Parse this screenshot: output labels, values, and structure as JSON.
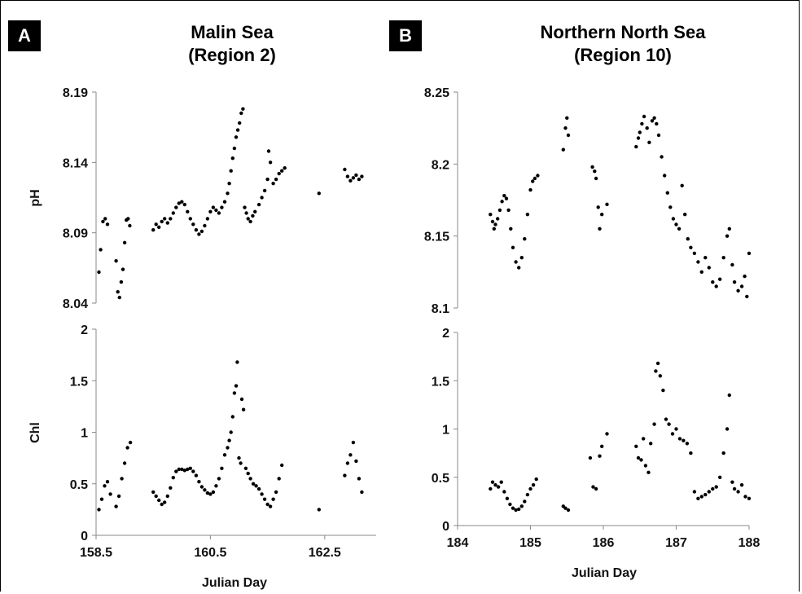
{
  "panels": {
    "A": {
      "label": "A",
      "title_line1": "Malin Sea",
      "title_line2": "(Region 2)"
    },
    "B": {
      "label": "B",
      "title_line1": "Northern North Sea",
      "title_line2": "(Region 10)"
    }
  },
  "chart_data": [
    {
      "type": "scatter",
      "panel": "A",
      "subplot": "top",
      "title": "Malin Sea (Region 2)",
      "xlabel": "",
      "ylabel": "pH",
      "xlim": [
        158.5,
        163.4
      ],
      "ylim": [
        8.04,
        8.19
      ],
      "yticks": [
        "8.04",
        "8.09",
        "8.14",
        "8.19"
      ],
      "color": "#000000",
      "points": [
        [
          158.55,
          8.062
        ],
        [
          158.58,
          8.078
        ],
        [
          158.62,
          8.098
        ],
        [
          158.66,
          8.1
        ],
        [
          158.7,
          8.096
        ],
        [
          158.85,
          8.07
        ],
        [
          158.88,
          8.048
        ],
        [
          158.91,
          8.044
        ],
        [
          158.94,
          8.055
        ],
        [
          158.97,
          8.064
        ],
        [
          159.0,
          8.083
        ],
        [
          159.03,
          8.099
        ],
        [
          159.06,
          8.1
        ],
        [
          159.09,
          8.095
        ],
        [
          159.5,
          8.092
        ],
        [
          159.55,
          8.096
        ],
        [
          159.6,
          8.094
        ],
        [
          159.65,
          8.098
        ],
        [
          159.7,
          8.1
        ],
        [
          159.75,
          8.097
        ],
        [
          159.8,
          8.1
        ],
        [
          159.85,
          8.104
        ],
        [
          159.9,
          8.108
        ],
        [
          159.95,
          8.111
        ],
        [
          160.0,
          8.112
        ],
        [
          160.05,
          8.11
        ],
        [
          160.1,
          8.105
        ],
        [
          160.15,
          8.1
        ],
        [
          160.2,
          8.096
        ],
        [
          160.25,
          8.092
        ],
        [
          160.3,
          8.089
        ],
        [
          160.35,
          8.091
        ],
        [
          160.4,
          8.095
        ],
        [
          160.45,
          8.1
        ],
        [
          160.5,
          8.105
        ],
        [
          160.55,
          8.108
        ],
        [
          160.6,
          8.106
        ],
        [
          160.65,
          8.104
        ],
        [
          160.7,
          8.108
        ],
        [
          160.75,
          8.112
        ],
        [
          160.8,
          8.118
        ],
        [
          160.83,
          8.125
        ],
        [
          160.86,
          8.134
        ],
        [
          160.89,
          8.143
        ],
        [
          160.92,
          8.15
        ],
        [
          160.95,
          8.158
        ],
        [
          160.98,
          8.163
        ],
        [
          161.01,
          8.168
        ],
        [
          161.04,
          8.175
        ],
        [
          161.07,
          8.178
        ],
        [
          161.1,
          8.108
        ],
        [
          161.13,
          8.104
        ],
        [
          161.16,
          8.1
        ],
        [
          161.2,
          8.098
        ],
        [
          161.24,
          8.102
        ],
        [
          161.28,
          8.105
        ],
        [
          161.35,
          8.11
        ],
        [
          161.4,
          8.115
        ],
        [
          161.45,
          8.12
        ],
        [
          161.5,
          8.128
        ],
        [
          161.52,
          8.148
        ],
        [
          161.55,
          8.14
        ],
        [
          161.6,
          8.125
        ],
        [
          161.65,
          8.128
        ],
        [
          161.7,
          8.132
        ],
        [
          161.75,
          8.134
        ],
        [
          161.8,
          8.136
        ],
        [
          162.4,
          8.118
        ],
        [
          162.85,
          8.135
        ],
        [
          162.9,
          8.13
        ],
        [
          162.95,
          8.127
        ],
        [
          163.0,
          8.129
        ],
        [
          163.05,
          8.131
        ],
        [
          163.1,
          8.128
        ],
        [
          163.15,
          8.13
        ]
      ]
    },
    {
      "type": "scatter",
      "panel": "A",
      "subplot": "bottom",
      "xlabel": "Julian Day",
      "ylabel": "Chl",
      "xlim": [
        158.5,
        163.4
      ],
      "ylim": [
        0,
        2
      ],
      "xticks": [
        "158.5",
        "160.5",
        "162.5"
      ],
      "yticks": [
        "0",
        "0.5",
        "1",
        "1.5",
        "2"
      ],
      "color": "#000000",
      "points": [
        [
          158.55,
          0.25
        ],
        [
          158.6,
          0.35
        ],
        [
          158.65,
          0.48
        ],
        [
          158.7,
          0.52
        ],
        [
          158.75,
          0.4
        ],
        [
          158.85,
          0.28
        ],
        [
          158.9,
          0.38
        ],
        [
          158.95,
          0.55
        ],
        [
          159.0,
          0.7
        ],
        [
          159.05,
          0.85
        ],
        [
          159.1,
          0.9
        ],
        [
          159.5,
          0.42
        ],
        [
          159.55,
          0.38
        ],
        [
          159.6,
          0.34
        ],
        [
          159.65,
          0.3
        ],
        [
          159.7,
          0.32
        ],
        [
          159.75,
          0.38
        ],
        [
          159.8,
          0.46
        ],
        [
          159.85,
          0.56
        ],
        [
          159.9,
          0.62
        ],
        [
          159.95,
          0.64
        ],
        [
          160.0,
          0.64
        ],
        [
          160.05,
          0.63
        ],
        [
          160.1,
          0.64
        ],
        [
          160.15,
          0.65
        ],
        [
          160.2,
          0.62
        ],
        [
          160.25,
          0.58
        ],
        [
          160.3,
          0.52
        ],
        [
          160.35,
          0.47
        ],
        [
          160.4,
          0.44
        ],
        [
          160.45,
          0.41
        ],
        [
          160.5,
          0.4
        ],
        [
          160.55,
          0.42
        ],
        [
          160.6,
          0.48
        ],
        [
          160.65,
          0.55
        ],
        [
          160.7,
          0.65
        ],
        [
          160.75,
          0.78
        ],
        [
          160.8,
          0.85
        ],
        [
          160.83,
          0.92
        ],
        [
          160.86,
          1.0
        ],
        [
          160.89,
          1.15
        ],
        [
          160.92,
          1.38
        ],
        [
          160.95,
          1.45
        ],
        [
          160.97,
          1.68
        ],
        [
          161.0,
          0.75
        ],
        [
          161.03,
          0.7
        ],
        [
          161.05,
          1.32
        ],
        [
          161.08,
          1.22
        ],
        [
          161.12,
          0.65
        ],
        [
          161.16,
          0.6
        ],
        [
          161.2,
          0.55
        ],
        [
          161.25,
          0.5
        ],
        [
          161.3,
          0.48
        ],
        [
          161.35,
          0.45
        ],
        [
          161.4,
          0.4
        ],
        [
          161.45,
          0.35
        ],
        [
          161.5,
          0.3
        ],
        [
          161.55,
          0.28
        ],
        [
          161.6,
          0.35
        ],
        [
          161.65,
          0.42
        ],
        [
          161.7,
          0.55
        ],
        [
          161.75,
          0.68
        ],
        [
          162.4,
          0.25
        ],
        [
          162.85,
          0.58
        ],
        [
          162.9,
          0.7
        ],
        [
          162.95,
          0.78
        ],
        [
          163.0,
          0.9
        ],
        [
          163.05,
          0.72
        ],
        [
          163.1,
          0.55
        ],
        [
          163.15,
          0.42
        ]
      ]
    },
    {
      "type": "scatter",
      "panel": "B",
      "subplot": "top",
      "title": "Northern North Sea (Region 10)",
      "xlabel": "",
      "ylabel": "",
      "xlim": [
        184,
        188
      ],
      "ylim": [
        8.1,
        8.25
      ],
      "yticks": [
        "8.1",
        "8.15",
        "8.2",
        "8.25"
      ],
      "color": "#000000",
      "points": [
        [
          184.45,
          8.165
        ],
        [
          184.48,
          8.16
        ],
        [
          184.5,
          8.155
        ],
        [
          184.52,
          8.158
        ],
        [
          184.55,
          8.162
        ],
        [
          184.58,
          8.168
        ],
        [
          184.61,
          8.174
        ],
        [
          184.64,
          8.178
        ],
        [
          184.67,
          8.176
        ],
        [
          184.7,
          8.168
        ],
        [
          184.73,
          8.155
        ],
        [
          184.76,
          8.142
        ],
        [
          184.8,
          8.132
        ],
        [
          184.84,
          8.128
        ],
        [
          184.88,
          8.135
        ],
        [
          184.92,
          8.148
        ],
        [
          184.96,
          8.165
        ],
        [
          185.0,
          8.182
        ],
        [
          185.03,
          8.188
        ],
        [
          185.06,
          8.19
        ],
        [
          185.1,
          8.192
        ],
        [
          185.45,
          8.21
        ],
        [
          185.48,
          8.225
        ],
        [
          185.5,
          8.232
        ],
        [
          185.52,
          8.22
        ],
        [
          185.85,
          8.198
        ],
        [
          185.88,
          8.195
        ],
        [
          185.9,
          8.19
        ],
        [
          185.93,
          8.17
        ],
        [
          185.95,
          8.155
        ],
        [
          185.98,
          8.165
        ],
        [
          186.05,
          8.172
        ],
        [
          186.45,
          8.212
        ],
        [
          186.48,
          8.218
        ],
        [
          186.5,
          8.222
        ],
        [
          186.53,
          8.228
        ],
        [
          186.56,
          8.233
        ],
        [
          186.6,
          8.225
        ],
        [
          186.63,
          8.215
        ],
        [
          186.67,
          8.23
        ],
        [
          186.7,
          8.232
        ],
        [
          186.73,
          8.228
        ],
        [
          186.76,
          8.22
        ],
        [
          186.8,
          8.205
        ],
        [
          186.84,
          8.192
        ],
        [
          186.88,
          8.18
        ],
        [
          186.92,
          8.17
        ],
        [
          186.96,
          8.162
        ],
        [
          187.0,
          8.158
        ],
        [
          187.04,
          8.155
        ],
        [
          187.08,
          8.185
        ],
        [
          187.12,
          8.165
        ],
        [
          187.16,
          8.148
        ],
        [
          187.2,
          8.142
        ],
        [
          187.25,
          8.138
        ],
        [
          187.3,
          8.132
        ],
        [
          187.35,
          8.125
        ],
        [
          187.4,
          8.135
        ],
        [
          187.45,
          8.128
        ],
        [
          187.5,
          8.118
        ],
        [
          187.55,
          8.115
        ],
        [
          187.6,
          8.12
        ],
        [
          187.65,
          8.135
        ],
        [
          187.7,
          8.15
        ],
        [
          187.73,
          8.155
        ],
        [
          187.77,
          8.13
        ],
        [
          187.8,
          8.118
        ],
        [
          187.85,
          8.112
        ],
        [
          187.9,
          8.115
        ],
        [
          187.94,
          8.122
        ],
        [
          187.97,
          8.108
        ],
        [
          188.0,
          8.138
        ]
      ]
    },
    {
      "type": "scatter",
      "panel": "B",
      "subplot": "bottom",
      "xlabel": "Julian Day",
      "ylabel": "",
      "xlim": [
        184,
        188
      ],
      "ylim": [
        0,
        2
      ],
      "xticks": [
        "184",
        "185",
        "186",
        "187",
        "188"
      ],
      "yticks": [
        "0",
        "0.5",
        "1",
        "1.5",
        "2"
      ],
      "color": "#000000",
      "points": [
        [
          184.45,
          0.38
        ],
        [
          184.48,
          0.45
        ],
        [
          184.52,
          0.42
        ],
        [
          184.56,
          0.4
        ],
        [
          184.6,
          0.45
        ],
        [
          184.64,
          0.35
        ],
        [
          184.68,
          0.28
        ],
        [
          184.72,
          0.22
        ],
        [
          184.76,
          0.18
        ],
        [
          184.8,
          0.16
        ],
        [
          184.84,
          0.17
        ],
        [
          184.88,
          0.2
        ],
        [
          184.92,
          0.25
        ],
        [
          184.96,
          0.32
        ],
        [
          185.0,
          0.38
        ],
        [
          185.04,
          0.42
        ],
        [
          185.08,
          0.48
        ],
        [
          185.45,
          0.2
        ],
        [
          185.48,
          0.18
        ],
        [
          185.52,
          0.16
        ],
        [
          185.82,
          0.7
        ],
        [
          185.86,
          0.4
        ],
        [
          185.9,
          0.38
        ],
        [
          185.95,
          0.72
        ],
        [
          185.98,
          0.82
        ],
        [
          186.05,
          0.95
        ],
        [
          186.45,
          0.82
        ],
        [
          186.48,
          0.7
        ],
        [
          186.52,
          0.68
        ],
        [
          186.55,
          0.9
        ],
        [
          186.58,
          0.62
        ],
        [
          186.62,
          0.55
        ],
        [
          186.65,
          0.85
        ],
        [
          186.7,
          1.05
        ],
        [
          186.72,
          1.6
        ],
        [
          186.75,
          1.68
        ],
        [
          186.78,
          1.55
        ],
        [
          186.82,
          1.4
        ],
        [
          186.86,
          1.1
        ],
        [
          186.9,
          1.05
        ],
        [
          186.95,
          0.95
        ],
        [
          187.0,
          1.0
        ],
        [
          187.05,
          0.9
        ],
        [
          187.1,
          0.88
        ],
        [
          187.15,
          0.85
        ],
        [
          187.2,
          0.75
        ],
        [
          187.25,
          0.35
        ],
        [
          187.3,
          0.28
        ],
        [
          187.35,
          0.3
        ],
        [
          187.4,
          0.32
        ],
        [
          187.45,
          0.35
        ],
        [
          187.5,
          0.38
        ],
        [
          187.55,
          0.4
        ],
        [
          187.6,
          0.5
        ],
        [
          187.65,
          0.75
        ],
        [
          187.7,
          1.0
        ],
        [
          187.73,
          1.35
        ],
        [
          187.77,
          0.45
        ],
        [
          187.8,
          0.38
        ],
        [
          187.85,
          0.35
        ],
        [
          187.9,
          0.42
        ],
        [
          187.95,
          0.3
        ],
        [
          188.0,
          0.28
        ]
      ]
    }
  ]
}
